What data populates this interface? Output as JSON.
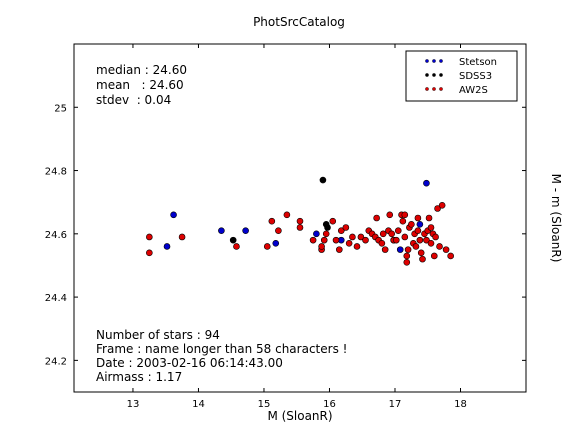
{
  "chart_data": {
    "type": "scatter",
    "title": "PhotSrcCatalog",
    "xlabel": "M (SloanR)",
    "ylabel": "M - m (SloanR)",
    "xlim": [
      12.1,
      19.0
    ],
    "ylim": [
      24.1,
      25.2
    ],
    "x_ticks": [
      "13",
      "14",
      "15",
      "16",
      "17",
      "18"
    ],
    "y_ticks": [
      "24.2",
      "24.4",
      "24.6",
      "24.8",
      "25"
    ],
    "grid": false,
    "legend_position": "top-right",
    "stats_lines": [
      "median : 24.60",
      "mean   : 24.60",
      "stdev  : 0.04"
    ],
    "info_lines": [
      "Number of stars : 94",
      "Frame : name longer than 58 characters !",
      "Date : 2003-02-16 06:14:43.00",
      "Airmass : 1.17"
    ],
    "series": [
      {
        "name": "Stetson",
        "color": "#0000cc",
        "points": [
          [
            13.52,
            24.56
          ],
          [
            13.62,
            24.66
          ],
          [
            14.35,
            24.61
          ],
          [
            14.72,
            24.61
          ],
          [
            15.18,
            24.57
          ],
          [
            15.8,
            24.6
          ],
          [
            16.18,
            24.58
          ],
          [
            16.98,
            24.58
          ],
          [
            17.08,
            24.55
          ],
          [
            17.38,
            24.63
          ],
          [
            17.48,
            24.76
          ]
        ]
      },
      {
        "name": "SDSS3",
        "color": "#000000",
        "points": [
          [
            14.53,
            24.58
          ],
          [
            15.9,
            24.77
          ],
          [
            15.95,
            24.63
          ],
          [
            15.97,
            24.62
          ]
        ]
      },
      {
        "name": "AW2S",
        "color": "#dd0000",
        "points": [
          [
            13.25,
            24.59
          ],
          [
            13.25,
            24.54
          ],
          [
            13.75,
            24.59
          ],
          [
            14.58,
            24.56
          ],
          [
            15.05,
            24.56
          ],
          [
            15.12,
            24.64
          ],
          [
            15.22,
            24.61
          ],
          [
            15.35,
            24.66
          ],
          [
            15.55,
            24.64
          ],
          [
            15.55,
            24.62
          ],
          [
            15.75,
            24.58
          ],
          [
            15.88,
            24.55
          ],
          [
            15.88,
            24.56
          ],
          [
            15.92,
            24.58
          ],
          [
            15.95,
            24.6
          ],
          [
            16.05,
            24.64
          ],
          [
            16.1,
            24.58
          ],
          [
            16.15,
            24.55
          ],
          [
            16.18,
            24.61
          ],
          [
            16.25,
            24.62
          ],
          [
            16.3,
            24.57
          ],
          [
            16.35,
            24.59
          ],
          [
            16.42,
            24.56
          ],
          [
            16.48,
            24.59
          ],
          [
            16.55,
            24.58
          ],
          [
            16.6,
            24.61
          ],
          [
            16.65,
            24.6
          ],
          [
            16.7,
            24.59
          ],
          [
            16.72,
            24.65
          ],
          [
            16.75,
            24.58
          ],
          [
            16.8,
            24.57
          ],
          [
            16.82,
            24.6
          ],
          [
            16.85,
            24.55
          ],
          [
            16.9,
            24.61
          ],
          [
            16.92,
            24.66
          ],
          [
            16.95,
            24.6
          ],
          [
            16.98,
            24.58
          ],
          [
            17.02,
            24.58
          ],
          [
            17.05,
            24.61
          ],
          [
            17.1,
            24.66
          ],
          [
            17.12,
            24.64
          ],
          [
            17.15,
            24.59
          ],
          [
            17.18,
            24.51
          ],
          [
            17.18,
            24.53
          ],
          [
            17.2,
            24.55
          ],
          [
            17.22,
            24.62
          ],
          [
            17.25,
            24.63
          ],
          [
            17.28,
            24.57
          ],
          [
            17.3,
            24.6
          ],
          [
            17.32,
            24.56
          ],
          [
            17.35,
            24.65
          ],
          [
            17.38,
            24.58
          ],
          [
            17.4,
            24.54
          ],
          [
            17.42,
            24.52
          ],
          [
            17.45,
            24.6
          ],
          [
            17.48,
            24.58
          ],
          [
            17.5,
            24.61
          ],
          [
            17.52,
            24.65
          ],
          [
            17.55,
            24.57
          ],
          [
            17.58,
            24.6
          ],
          [
            17.6,
            24.53
          ],
          [
            17.62,
            24.59
          ],
          [
            17.65,
            24.68
          ],
          [
            17.68,
            24.56
          ],
          [
            17.72,
            24.69
          ],
          [
            17.78,
            24.55
          ],
          [
            17.85,
            24.53
          ],
          [
            17.15,
            24.66
          ],
          [
            17.35,
            24.61
          ],
          [
            17.55,
            24.62
          ]
        ]
      }
    ]
  }
}
